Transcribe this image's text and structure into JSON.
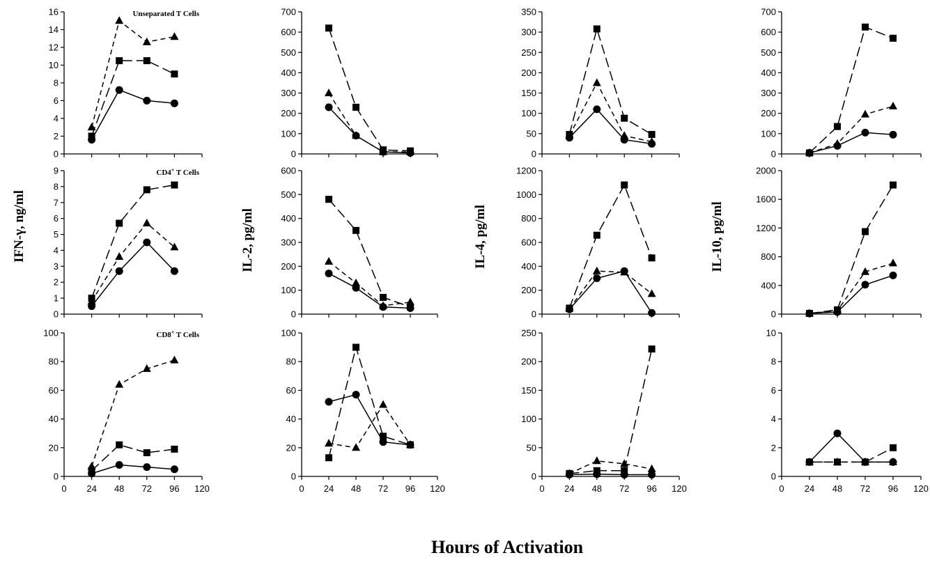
{
  "figure": {
    "xlabel": "Hours of Activation",
    "ylabels": [
      "IFN-γ, ng/ml",
      "IL-2, pg/ml",
      "IL-4, pg/ml",
      "IL-10, pg/ml"
    ]
  },
  "chart_data": [
    {
      "type": "line",
      "title": "Unseparated T Cells",
      "ylabel": "IFN-γ, ng/ml",
      "xlim": [
        0,
        120
      ],
      "ylim": [
        0,
        16
      ],
      "xticks": [
        0,
        24,
        48,
        72,
        96,
        120
      ],
      "yticks": [
        0,
        2,
        4,
        6,
        8,
        10,
        12,
        14,
        16
      ],
      "x": [
        24,
        48,
        72,
        96
      ],
      "series": [
        {
          "marker": "square",
          "dash": "long",
          "values": [
            2,
            10.5,
            10.5,
            9
          ]
        },
        {
          "marker": "triangle",
          "dash": "short",
          "values": [
            3,
            15,
            12.6,
            13.2
          ]
        },
        {
          "marker": "circle",
          "dash": "solid",
          "values": [
            1.6,
            7.2,
            6,
            5.7
          ]
        }
      ]
    },
    {
      "type": "line",
      "title": "",
      "ylabel": "IL-2, pg/ml",
      "xlim": [
        0,
        120
      ],
      "ylim": [
        0,
        700
      ],
      "xticks": [
        0,
        24,
        48,
        72,
        96,
        120
      ],
      "yticks": [
        0,
        100,
        200,
        300,
        400,
        500,
        600,
        700
      ],
      "x": [
        24,
        48,
        72,
        96
      ],
      "series": [
        {
          "marker": "square",
          "dash": "long",
          "values": [
            620,
            230,
            20,
            15
          ]
        },
        {
          "marker": "triangle",
          "dash": "short",
          "values": [
            300,
            90,
            10,
            10
          ]
        },
        {
          "marker": "circle",
          "dash": "solid",
          "values": [
            230,
            90,
            10,
            5
          ]
        }
      ]
    },
    {
      "type": "line",
      "title": "",
      "ylabel": "IL-4, pg/ml",
      "xlim": [
        0,
        120
      ],
      "ylim": [
        0,
        350
      ],
      "xticks": [
        0,
        24,
        48,
        72,
        96,
        120
      ],
      "yticks": [
        0,
        50,
        100,
        150,
        200,
        250,
        300,
        350
      ],
      "x": [
        24,
        48,
        72,
        96
      ],
      "series": [
        {
          "marker": "square",
          "dash": "long",
          "values": [
            48,
            308,
            88,
            48
          ]
        },
        {
          "marker": "triangle",
          "dash": "short",
          "values": [
            45,
            175,
            45,
            30
          ]
        },
        {
          "marker": "circle",
          "dash": "solid",
          "values": [
            40,
            110,
            35,
            25
          ]
        }
      ]
    },
    {
      "type": "line",
      "title": "",
      "ylabel": "IL-10, pg/ml",
      "xlim": [
        0,
        120
      ],
      "ylim": [
        0,
        700
      ],
      "xticks": [
        0,
        24,
        48,
        72,
        96,
        120
      ],
      "yticks": [
        0,
        100,
        200,
        300,
        400,
        500,
        600,
        700
      ],
      "x": [
        24,
        48,
        72,
        96
      ],
      "series": [
        {
          "marker": "square",
          "dash": "long",
          "values": [
            5,
            135,
            625,
            570
          ]
        },
        {
          "marker": "triangle",
          "dash": "short",
          "values": [
            5,
            50,
            195,
            235
          ]
        },
        {
          "marker": "circle",
          "dash": "solid",
          "values": [
            5,
            40,
            105,
            95
          ]
        }
      ]
    },
    {
      "type": "line",
      "title": "CD4+ T Cells",
      "ylabel": "IFN-γ, ng/ml",
      "xlim": [
        0,
        120
      ],
      "ylim": [
        0,
        9
      ],
      "xticks": [
        0,
        24,
        48,
        72,
        96,
        120
      ],
      "yticks": [
        0,
        1,
        2,
        3,
        4,
        5,
        6,
        7,
        8,
        9
      ],
      "x": [
        24,
        48,
        72,
        96
      ],
      "series": [
        {
          "marker": "square",
          "dash": "long",
          "values": [
            1,
            5.7,
            7.8,
            8.1
          ]
        },
        {
          "marker": "triangle",
          "dash": "short",
          "values": [
            0.8,
            3.6,
            5.7,
            4.2
          ]
        },
        {
          "marker": "circle",
          "dash": "solid",
          "values": [
            0.5,
            2.7,
            4.5,
            2.7
          ]
        }
      ]
    },
    {
      "type": "line",
      "title": "",
      "ylabel": "IL-2, pg/ml",
      "xlim": [
        0,
        120
      ],
      "ylim": [
        0,
        600
      ],
      "xticks": [
        0,
        24,
        48,
        72,
        96,
        120
      ],
      "yticks": [
        0,
        100,
        200,
        300,
        400,
        500,
        600
      ],
      "x": [
        24,
        48,
        72,
        96
      ],
      "series": [
        {
          "marker": "square",
          "dash": "long",
          "values": [
            480,
            350,
            70,
            30
          ]
        },
        {
          "marker": "triangle",
          "dash": "short",
          "values": [
            220,
            130,
            35,
            50
          ]
        },
        {
          "marker": "circle",
          "dash": "solid",
          "values": [
            170,
            110,
            30,
            25
          ]
        }
      ]
    },
    {
      "type": "line",
      "title": "",
      "ylabel": "IL-4, pg/ml",
      "xlim": [
        0,
        120
      ],
      "ylim": [
        0,
        1200
      ],
      "xticks": [
        0,
        24,
        48,
        72,
        96,
        120
      ],
      "yticks": [
        0,
        200,
        400,
        600,
        800,
        1000,
        1200
      ],
      "x": [
        24,
        48,
        72,
        96
      ],
      "series": [
        {
          "marker": "square",
          "dash": "long",
          "values": [
            50,
            660,
            1080,
            470
          ]
        },
        {
          "marker": "triangle",
          "dash": "short",
          "values": [
            45,
            360,
            350,
            170
          ]
        },
        {
          "marker": "circle",
          "dash": "solid",
          "values": [
            40,
            300,
            360,
            10
          ]
        }
      ]
    },
    {
      "type": "line",
      "title": "",
      "ylabel": "IL-10, pg/ml",
      "xlim": [
        0,
        120
      ],
      "ylim": [
        0,
        2000
      ],
      "xticks": [
        0,
        24,
        48,
        72,
        96,
        120
      ],
      "yticks": [
        0,
        400,
        800,
        1200,
        1600,
        2000
      ],
      "x": [
        24,
        48,
        72,
        96
      ],
      "series": [
        {
          "marker": "square",
          "dash": "long",
          "values": [
            10,
            60,
            1150,
            1800
          ]
        },
        {
          "marker": "triangle",
          "dash": "short",
          "values": [
            10,
            50,
            590,
            710
          ]
        },
        {
          "marker": "circle",
          "dash": "solid",
          "values": [
            10,
            30,
            410,
            540
          ]
        }
      ]
    },
    {
      "type": "line",
      "title": "CD8+ T Cells",
      "ylabel": "IFN-γ, ng/ml",
      "xlim": [
        0,
        120
      ],
      "ylim": [
        0,
        100
      ],
      "xticks": [
        0,
        24,
        48,
        72,
        96,
        120
      ],
      "yticks": [
        0,
        20,
        40,
        60,
        80,
        100
      ],
      "x": [
        24,
        48,
        72,
        96
      ],
      "series": [
        {
          "marker": "square",
          "dash": "long",
          "values": [
            4,
            22,
            16.5,
            19
          ]
        },
        {
          "marker": "triangle",
          "dash": "short",
          "values": [
            7,
            64,
            75,
            81
          ]
        },
        {
          "marker": "circle",
          "dash": "solid",
          "values": [
            2,
            8,
            6.5,
            5
          ]
        }
      ]
    },
    {
      "type": "line",
      "title": "",
      "ylabel": "IL-2, pg/ml",
      "xlim": [
        0,
        120
      ],
      "ylim": [
        0,
        100
      ],
      "xticks": [
        0,
        24,
        48,
        72,
        96,
        120
      ],
      "yticks": [
        0,
        20,
        40,
        60,
        80,
        100
      ],
      "x": [
        24,
        48,
        72,
        96
      ],
      "series": [
        {
          "marker": "square",
          "dash": "long",
          "values": [
            13,
            90,
            28,
            22
          ]
        },
        {
          "marker": "triangle",
          "dash": "short",
          "values": [
            23,
            20,
            50,
            22
          ]
        },
        {
          "marker": "circle",
          "dash": "solid",
          "values": [
            52,
            57,
            24,
            22
          ]
        }
      ]
    },
    {
      "type": "line",
      "title": "",
      "ylabel": "IL-4, pg/ml",
      "xlim": [
        0,
        120
      ],
      "ylim": [
        0,
        250
      ],
      "xticks": [
        0,
        24,
        48,
        72,
        96,
        120
      ],
      "yticks": [
        0,
        50,
        100,
        150,
        200,
        250
      ],
      "x": [
        24,
        48,
        72,
        96
      ],
      "series": [
        {
          "marker": "square",
          "dash": "long",
          "values": [
            5,
            10,
            10,
            222
          ]
        },
        {
          "marker": "triangle",
          "dash": "short",
          "values": [
            5,
            27,
            22,
            13
          ]
        },
        {
          "marker": "circle",
          "dash": "solid",
          "values": [
            3,
            4,
            3,
            3
          ]
        }
      ]
    },
    {
      "type": "line",
      "title": "",
      "ylabel": "IL-10, pg/ml",
      "xlim": [
        0,
        120
      ],
      "ylim": [
        0,
        10
      ],
      "xticks": [
        0,
        24,
        48,
        72,
        96,
        120
      ],
      "yticks": [
        0,
        2,
        4,
        6,
        8,
        10
      ],
      "x": [
        24,
        48,
        72,
        96
      ],
      "series": [
        {
          "marker": "square",
          "dash": "long",
          "values": [
            1,
            1,
            1,
            2
          ]
        },
        {
          "marker": "triangle",
          "dash": "short",
          "values": [
            1,
            1,
            1,
            1
          ]
        },
        {
          "marker": "circle",
          "dash": "solid",
          "values": [
            1,
            3,
            1,
            1
          ]
        }
      ]
    }
  ]
}
